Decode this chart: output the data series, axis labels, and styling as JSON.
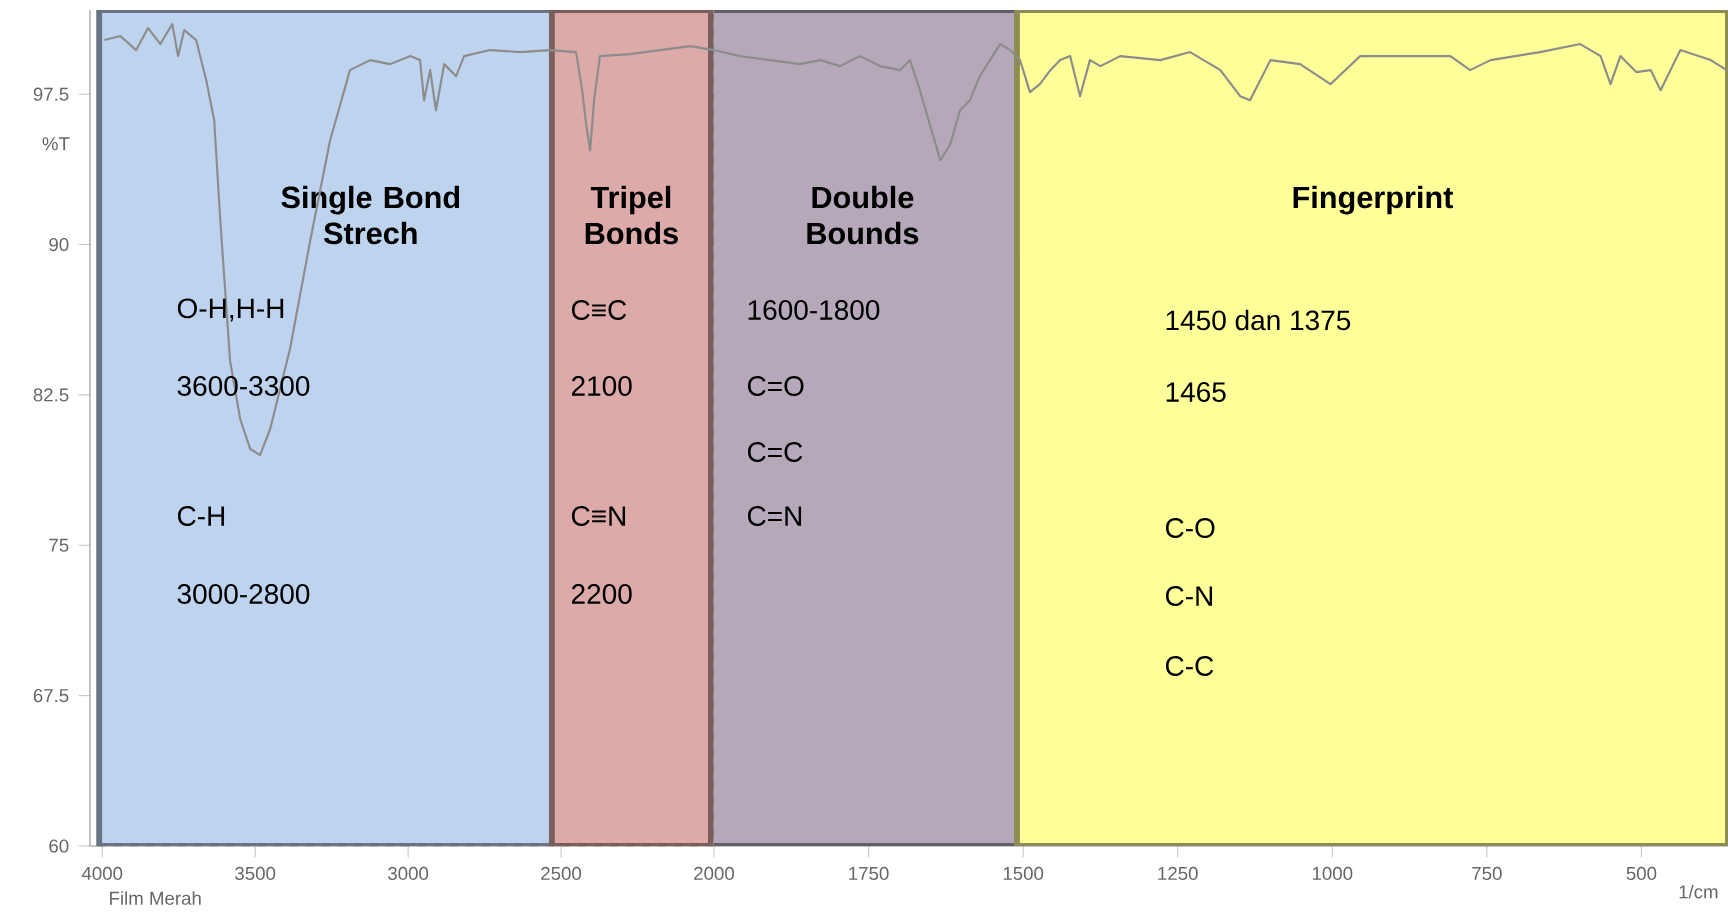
{
  "chart_data": [
    {
      "type": "line",
      "ylabel": "%T",
      "xlim": [
        4040,
        2000
      ],
      "ylim": [
        60,
        101.7
      ],
      "xticks": [
        4000,
        3500,
        3000,
        2500
      ],
      "yticks": [
        60,
        67.5,
        75,
        82.5,
        90,
        97.5
      ],
      "grid": true,
      "marker": "none",
      "line_style": "solid",
      "series": [
        {
          "color": "#8c8c8c",
          "x": [
            3993,
            3941,
            3889,
            3850,
            3810,
            3771,
            3752,
            3732,
            3693,
            3660,
            3634,
            3614,
            3582,
            3549,
            3516,
            3484,
            3451,
            3386,
            3320,
            3255,
            3190,
            3124,
            3059,
            2993,
            2961,
            2948,
            2928,
            2909,
            2882,
            2843,
            2817,
            2732,
            2634,
            2536,
            2451,
            2431,
            2418,
            2405,
            2392,
            2373,
            2275,
            2176,
            2078,
            2000
          ],
          "values": [
            100.2,
            100.4,
            99.7,
            100.8,
            100.0,
            101.0,
            99.4,
            100.7,
            100.2,
            98.2,
            96.2,
            91.2,
            84.2,
            81.3,
            79.8,
            79.5,
            80.8,
            84.8,
            90.2,
            95.2,
            98.7,
            99.2,
            99.0,
            99.4,
            99.2,
            97.2,
            98.7,
            96.7,
            99.0,
            98.4,
            99.4,
            99.7,
            99.6,
            99.7,
            99.6,
            97.7,
            96.0,
            94.7,
            97.2,
            99.4,
            99.5,
            99.7,
            99.9,
            99.7
          ]
        }
      ],
      "bands": [
        {
          "axis": "x",
          "from": 4010,
          "to": 2530,
          "label": "Single Bond Strech",
          "color": "#bdd3ee"
        },
        {
          "axis": "x",
          "from": 2530,
          "to": 2010,
          "label": "Tripel Bonds",
          "color": "#dcaaa8"
        }
      ],
      "annotations": [
        "O-H,H-H",
        "3600-3300",
        "C-H",
        "3000-2800",
        "C≡C",
        "2100",
        "C≡N",
        "2200",
        "Film Merah"
      ]
    },
    {
      "type": "line",
      "xlabel": "1/cm",
      "xlim": [
        2000,
        360
      ],
      "ylim": [
        60,
        101.7
      ],
      "xticks": [
        2000,
        1750,
        1500,
        1250,
        1000,
        750,
        500
      ],
      "yticks": [
        60,
        67.5,
        75,
        82.5,
        90,
        97.5
      ],
      "tick_labels": "x",
      "grid": true,
      "marker": "none",
      "line_style": "solid",
      "series": [
        {
          "color": "#8c8c8c",
          "x": [
            2000,
            1958,
            1909,
            1861,
            1828,
            1796,
            1764,
            1731,
            1699,
            1683,
            1667,
            1651,
            1634,
            1618,
            1602,
            1586,
            1570,
            1537,
            1521,
            1505,
            1489,
            1473,
            1456,
            1440,
            1424,
            1408,
            1392,
            1375,
            1343,
            1278,
            1230,
            1181,
            1149,
            1133,
            1100,
            1052,
            1003,
            955,
            890,
            809,
            777,
            744,
            664,
            599,
            566,
            550,
            534,
            508,
            485,
            469,
            437,
            388,
            362
          ],
          "values": [
            99.7,
            99.4,
            99.2,
            99.0,
            99.2,
            98.9,
            99.4,
            98.9,
            98.7,
            99.2,
            97.7,
            96.0,
            94.2,
            95.0,
            96.7,
            97.2,
            98.4,
            100.0,
            99.7,
            99.2,
            97.6,
            98.0,
            98.7,
            99.2,
            99.4,
            97.4,
            99.2,
            98.9,
            99.4,
            99.2,
            99.6,
            98.7,
            97.4,
            97.2,
            99.2,
            99.0,
            98.0,
            99.4,
            99.4,
            99.4,
            98.7,
            99.2,
            99.6,
            100.0,
            99.4,
            98.0,
            99.4,
            98.6,
            98.7,
            97.7,
            99.7,
            99.2,
            98.7
          ]
        }
      ],
      "bands": [
        {
          "axis": "x",
          "from": 2010,
          "to": 1510,
          "label": "Double Bounds",
          "color": "#b5a9b9"
        },
        {
          "axis": "x",
          "from": 1510,
          "to": 360,
          "label": "Fingerprint",
          "color": "#ffff99"
        }
      ],
      "annotations": [
        "1600-1800",
        "C=O",
        "C=C",
        "C=N",
        "1450 dan 1375",
        "1465",
        "C-O",
        "C-N",
        "C-C"
      ]
    }
  ]
}
